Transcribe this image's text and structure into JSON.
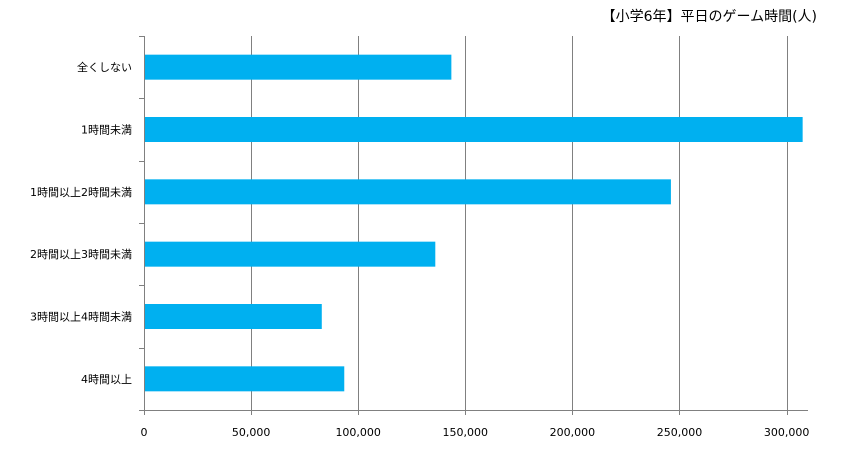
{
  "chart_data": {
    "type": "bar",
    "orientation": "horizontal",
    "title": "【小学6年】平日のゲーム時間(人)",
    "categories": [
      "全くしない",
      "1時間未満",
      "1時間以上2時間未満",
      "2時間以上3時間未満",
      "3時間以上4時間未満",
      "4時間以上"
    ],
    "values": [
      143500,
      307500,
      246000,
      136000,
      83000,
      93500
    ],
    "xlim": [
      0,
      310000
    ],
    "xticks": [
      0,
      50000,
      100000,
      150000,
      200000,
      250000,
      300000
    ],
    "xtick_labels": [
      "0",
      "50,000",
      "100,000",
      "150,000",
      "200,000",
      "250,000",
      "300,000"
    ],
    "grid": true,
    "legend": "none",
    "bar_color": "#00b0f0",
    "grid_color": "#808080"
  }
}
